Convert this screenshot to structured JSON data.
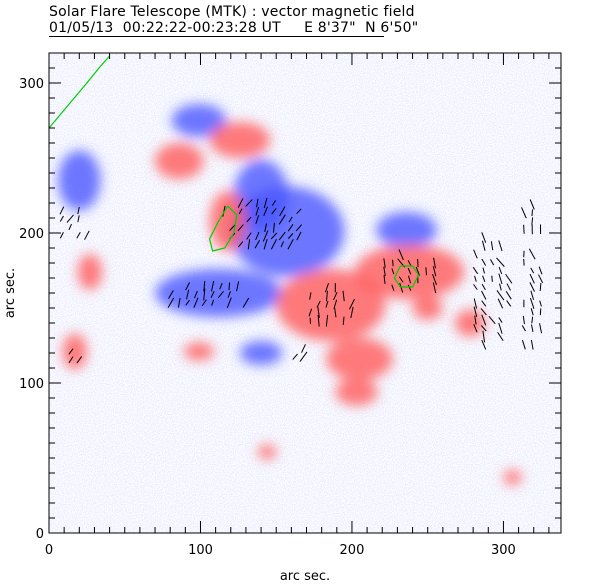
{
  "header": {
    "title": "Solar Flare Telescope (MTK) : vector magnetic field",
    "subtitle": "01/05/13  00:22:22-00:23:28 UT     E 8'37\"  N 6'50\""
  },
  "chart_data": {
    "type": "heatmap",
    "title": "Solar Flare Telescope (MTK) : vector magnetic field",
    "xlabel": "arc sec.",
    "ylabel": "arc sec.",
    "xlim": [
      0,
      338
    ],
    "ylim": [
      0,
      320
    ],
    "xticks": [
      "0",
      "100",
      "200",
      "300"
    ],
    "yticks": [
      "0",
      "100",
      "200",
      "300"
    ],
    "xtick_values": [
      0,
      100,
      200,
      300
    ],
    "ytick_values": [
      0,
      100,
      200,
      300
    ],
    "colors": {
      "positive": "#ff5a5a",
      "negative": "#4a55ff",
      "contour": "#00cc00",
      "vector": "#000000"
    },
    "polarity_regions": [
      {
        "sign": -1,
        "x": 157,
        "y": 201,
        "rx": 38,
        "ry": 30
      },
      {
        "sign": -1,
        "x": 112,
        "y": 160,
        "rx": 42,
        "ry": 16
      },
      {
        "sign": -1,
        "x": 140,
        "y": 225,
        "rx": 18,
        "ry": 24
      },
      {
        "sign": -1,
        "x": 99,
        "y": 275,
        "rx": 18,
        "ry": 11
      },
      {
        "sign": -1,
        "x": 236,
        "y": 202,
        "rx": 20,
        "ry": 12
      },
      {
        "sign": -1,
        "x": 20,
        "y": 235,
        "rx": 14,
        "ry": 20
      },
      {
        "sign": -1,
        "x": 140,
        "y": 120,
        "rx": 14,
        "ry": 8
      },
      {
        "sign": 1,
        "x": 118,
        "y": 208,
        "rx": 12,
        "ry": 20
      },
      {
        "sign": 1,
        "x": 126,
        "y": 262,
        "rx": 20,
        "ry": 12
      },
      {
        "sign": 1,
        "x": 86,
        "y": 248,
        "rx": 16,
        "ry": 12
      },
      {
        "sign": 1,
        "x": 238,
        "y": 174,
        "rx": 36,
        "ry": 18
      },
      {
        "sign": 1,
        "x": 186,
        "y": 152,
        "rx": 36,
        "ry": 24
      },
      {
        "sign": 1,
        "x": 205,
        "y": 116,
        "rx": 22,
        "ry": 14
      },
      {
        "sign": 1,
        "x": 203,
        "y": 94,
        "rx": 14,
        "ry": 9
      },
      {
        "sign": 1,
        "x": 17,
        "y": 121,
        "rx": 8,
        "ry": 12
      },
      {
        "sign": 1,
        "x": 27,
        "y": 174,
        "rx": 8,
        "ry": 12
      },
      {
        "sign": 1,
        "x": 278,
        "y": 140,
        "rx": 10,
        "ry": 9
      },
      {
        "sign": 1,
        "x": 306,
        "y": 37,
        "rx": 6,
        "ry": 5
      },
      {
        "sign": 1,
        "x": 144,
        "y": 54,
        "rx": 6,
        "ry": 5
      },
      {
        "sign": 1,
        "x": 99,
        "y": 121,
        "rx": 10,
        "ry": 6
      },
      {
        "sign": 1,
        "x": 250,
        "y": 150,
        "rx": 10,
        "ry": 8
      }
    ],
    "vector_regions": [
      {
        "x": 15,
        "y": 205,
        "rx": 12,
        "ry": 12,
        "angle": 60
      },
      {
        "x": 15,
        "y": 118,
        "rx": 6,
        "ry": 8,
        "angle": 60
      },
      {
        "x": 105,
        "y": 158,
        "rx": 30,
        "ry": 10,
        "angle": 70
      },
      {
        "x": 140,
        "y": 205,
        "rx": 30,
        "ry": 18,
        "angle": 65
      },
      {
        "x": 185,
        "y": 150,
        "rx": 18,
        "ry": 14,
        "angle": 80
      },
      {
        "x": 165,
        "y": 120,
        "rx": 8,
        "ry": 8,
        "angle": 60
      },
      {
        "x": 238,
        "y": 172,
        "rx": 22,
        "ry": 14,
        "angle": 110
      },
      {
        "x": 290,
        "y": 160,
        "rx": 14,
        "ry": 40,
        "angle": 115
      },
      {
        "x": 318,
        "y": 170,
        "rx": 10,
        "ry": 50,
        "angle": 100
      },
      {
        "x": 200,
        "y": 92,
        "rx": 6,
        "ry": 3,
        "angle": 60
      }
    ],
    "contours": [
      {
        "points": [
          [
            118,
            218
          ],
          [
            124,
            212
          ],
          [
            122,
            200
          ],
          [
            116,
            190
          ],
          [
            108,
            188
          ],
          [
            106,
            196
          ],
          [
            112,
            208
          ],
          [
            118,
            218
          ]
        ]
      },
      {
        "points": [
          [
            232,
            178
          ],
          [
            240,
            178
          ],
          [
            244,
            172
          ],
          [
            240,
            164
          ],
          [
            232,
            164
          ],
          [
            228,
            170
          ],
          [
            232,
            178
          ]
        ]
      },
      {
        "points": [
          [
            0,
            270
          ],
          [
            5,
            276
          ],
          [
            15,
            288
          ],
          [
            25,
            300
          ],
          [
            33,
            310
          ],
          [
            40,
            318
          ]
        ]
      }
    ]
  }
}
